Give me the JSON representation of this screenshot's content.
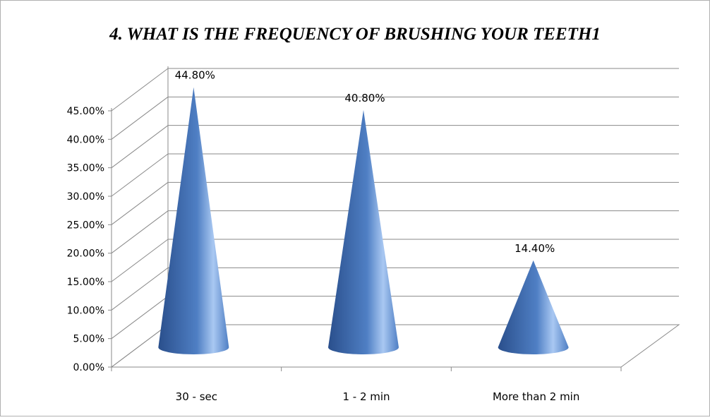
{
  "chart_data": {
    "type": "bar",
    "style": "3d-cone",
    "title": "4. WHAT IS THE FREQUENCY OF BRUSHING YOUR TEETH1",
    "categories": [
      "30 - sec",
      "1 - 2 min",
      "More than 2 min"
    ],
    "values": [
      44.8,
      40.8,
      14.4
    ],
    "data_labels": [
      "44.80%",
      "40.80%",
      "14.40%"
    ],
    "y_ticks": [
      "0.00%",
      "5.00%",
      "10.00%",
      "15.00%",
      "20.00%",
      "25.00%",
      "30.00%",
      "35.00%",
      "40.00%",
      "45.00%"
    ],
    "ylim": [
      0,
      45
    ],
    "y_step": 5,
    "grid": true,
    "legend": "none",
    "xlabel": "",
    "ylabel": "",
    "colors": {
      "cone_dark": "#2a4f8c",
      "cone_mid": "#4f7fc4",
      "cone_light": "#a9c8f2",
      "gridline": "#8a8a8a",
      "axis": "#8a8a8a",
      "text": "#000000"
    }
  }
}
